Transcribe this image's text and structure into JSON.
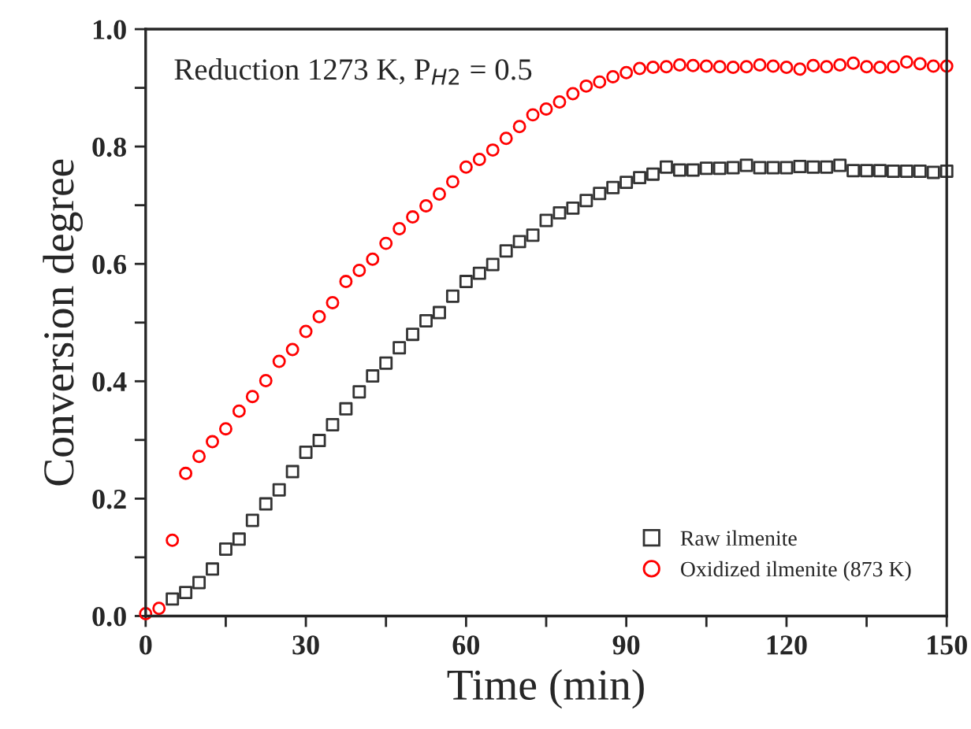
{
  "chart_data": {
    "type": "scatter",
    "xlabel": "Time (min)",
    "ylabel": "Conversion degree",
    "annotations": [
      "Reduction 1273 K, P$_{H2}$ = 0.5"
    ],
    "xlim": [
      0,
      150
    ],
    "ylim": [
      0,
      1.0
    ],
    "xticks": [
      0,
      {
        "value": 15,
        "label": null
      },
      30,
      {
        "value": 45,
        "label": null
      },
      60,
      {
        "value": 75,
        "label": null
      },
      90,
      {
        "value": 105,
        "label": null
      },
      120,
      {
        "value": 135,
        "label": null
      },
      150
    ],
    "yticks": [
      {
        "value": 0,
        "label": "0.0"
      },
      {
        "value": 0.1,
        "label": null
      },
      {
        "value": 0.2,
        "label": "0.2"
      },
      {
        "value": 0.3,
        "label": null
      },
      {
        "value": 0.4,
        "label": "0.4"
      },
      {
        "value": 0.5,
        "label": null
      },
      {
        "value": 0.6,
        "label": "0.6"
      },
      {
        "value": 0.7,
        "label": null
      },
      {
        "value": 0.8,
        "label": "0.8"
      },
      {
        "value": 0.9,
        "label": null
      },
      {
        "value": 1.0,
        "label": "1.0"
      }
    ],
    "grid": false,
    "legend": "bottom right",
    "series": [
      {
        "name": "Raw ilmenite",
        "color": "#333333",
        "marker": "square",
        "x": [
          5,
          7.5,
          10,
          12.5,
          15,
          17.5,
          20,
          22.5,
          25,
          27.5,
          30,
          32.5,
          35,
          37.5,
          40,
          42.5,
          45,
          47.5,
          50,
          52.5,
          55,
          57.5,
          60,
          62.5,
          65,
          67.5,
          70,
          72.5,
          75,
          77.5,
          80,
          82.5,
          85,
          87.5,
          90,
          92.5,
          95,
          97.5,
          100,
          102.5,
          105,
          107.5,
          110,
          112.5,
          115,
          117.5,
          120,
          122.5,
          125,
          127.5,
          130,
          132.5,
          135,
          137.5,
          140,
          142.5,
          145,
          147.5,
          150
        ],
        "values": [
          0.029,
          0.04,
          0.057,
          0.08,
          0.114,
          0.131,
          0.163,
          0.191,
          0.215,
          0.246,
          0.279,
          0.299,
          0.326,
          0.353,
          0.382,
          0.409,
          0.431,
          0.457,
          0.48,
          0.503,
          0.517,
          0.545,
          0.57,
          0.584,
          0.599,
          0.622,
          0.638,
          0.649,
          0.674,
          0.687,
          0.695,
          0.708,
          0.72,
          0.73,
          0.739,
          0.747,
          0.753,
          0.765,
          0.76,
          0.76,
          0.763,
          0.763,
          0.764,
          0.768,
          0.764,
          0.764,
          0.764,
          0.766,
          0.765,
          0.765,
          0.768,
          0.759,
          0.759,
          0.759,
          0.758,
          0.758,
          0.758,
          0.756,
          0.758
        ]
      },
      {
        "name": "Oxidized ilmenite (873 K)",
        "color": "#ff0000",
        "marker": "circle",
        "x": [
          0,
          2.5,
          5,
          7.5,
          10,
          12.5,
          15,
          17.5,
          20,
          22.5,
          25,
          27.5,
          30,
          32.5,
          35,
          37.5,
          40,
          42.5,
          45,
          47.5,
          50,
          52.5,
          55,
          57.5,
          60,
          62.5,
          65,
          67.5,
          70,
          72.5,
          75,
          77.5,
          80,
          82.5,
          85,
          87.5,
          90,
          92.5,
          95,
          97.5,
          100,
          102.5,
          105,
          107.5,
          110,
          112.5,
          115,
          117.5,
          120,
          122.5,
          125,
          127.5,
          130,
          132.5,
          135,
          137.5,
          140,
          142.5,
          145,
          147.5,
          150
        ],
        "values": [
          0.004,
          0.013,
          0.129,
          0.243,
          0.272,
          0.297,
          0.319,
          0.349,
          0.374,
          0.401,
          0.434,
          0.454,
          0.485,
          0.51,
          0.534,
          0.57,
          0.589,
          0.608,
          0.635,
          0.66,
          0.68,
          0.699,
          0.719,
          0.74,
          0.765,
          0.778,
          0.794,
          0.814,
          0.834,
          0.854,
          0.864,
          0.876,
          0.89,
          0.903,
          0.91,
          0.919,
          0.926,
          0.933,
          0.935,
          0.936,
          0.939,
          0.938,
          0.937,
          0.936,
          0.935,
          0.936,
          0.939,
          0.937,
          0.935,
          0.932,
          0.938,
          0.936,
          0.939,
          0.942,
          0.936,
          0.935,
          0.936,
          0.944,
          0.941,
          0.937,
          0.937
        ]
      }
    ]
  }
}
